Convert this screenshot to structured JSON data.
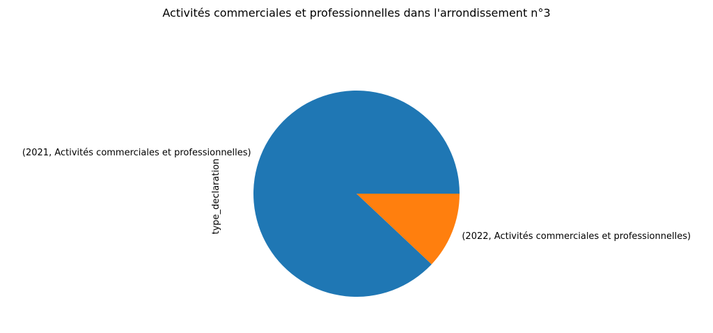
{
  "chart_data": {
    "type": "pie",
    "title": "Activités commerciales et professionnelles dans l'arrondissement n°3",
    "ylabel": "type_declaration",
    "slices": [
      {
        "label": "(2021, Activités commerciales et professionnelles)",
        "value": 88,
        "color": "#1f77b4"
      },
      {
        "label": "(2022, Activités commerciales et professionnelles)",
        "value": 12,
        "color": "#ff7f0e"
      }
    ],
    "start_angle_deg": 0,
    "direction": "counterclockwise",
    "legend": "none"
  }
}
